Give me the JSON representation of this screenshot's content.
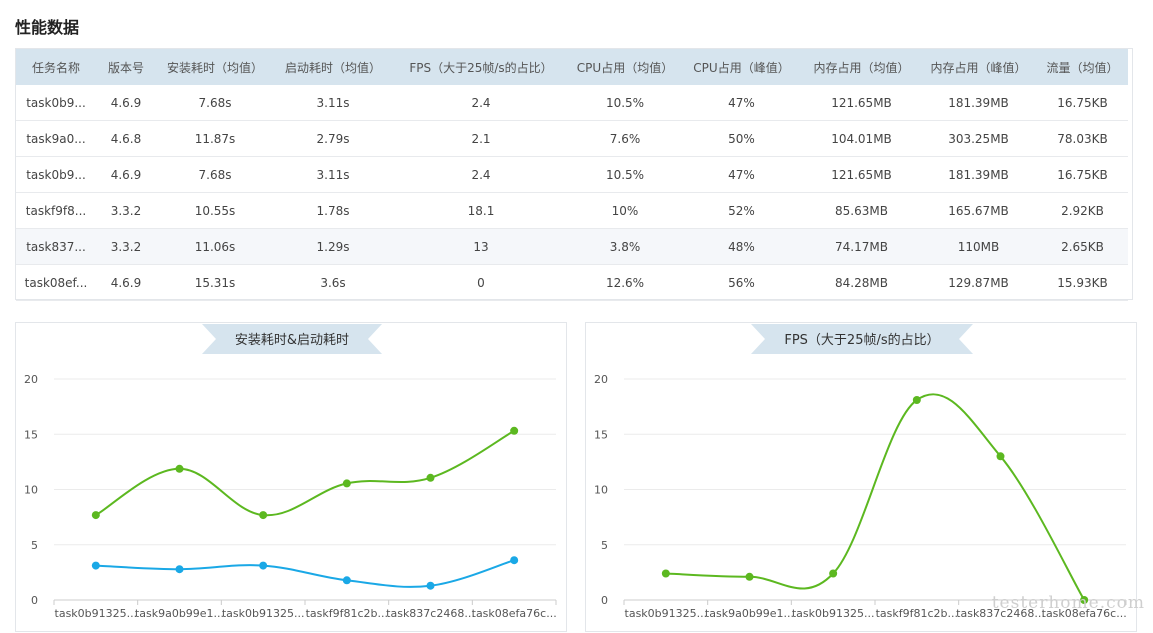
{
  "page": {
    "title": "性能数据"
  },
  "table": {
    "columns": [
      "任务名称",
      "版本号",
      "安装耗时（均值）",
      "启动耗时（均值）",
      "FPS（大于25帧/s的占比）",
      "CPU占用（均值）",
      "CPU占用（峰值）",
      "内存占用（均值）",
      "内存占用（峰值）",
      "流量（均值）"
    ],
    "rows": [
      [
        "task0b9...",
        "4.6.9",
        "7.68s",
        "3.11s",
        "2.4",
        "10.5%",
        "47%",
        "121.65MB",
        "181.39MB",
        "16.75KB"
      ],
      [
        "task9a0...",
        "4.6.8",
        "11.87s",
        "2.79s",
        "2.1",
        "7.6%",
        "50%",
        "104.01MB",
        "303.25MB",
        "78.03KB"
      ],
      [
        "task0b9...",
        "4.6.9",
        "7.68s",
        "3.11s",
        "2.4",
        "10.5%",
        "47%",
        "121.65MB",
        "181.39MB",
        "16.75KB"
      ],
      [
        "taskf9f8...",
        "3.3.2",
        "10.55s",
        "1.78s",
        "18.1",
        "10%",
        "52%",
        "85.63MB",
        "165.67MB",
        "2.92KB"
      ],
      [
        "task837...",
        "3.3.2",
        "11.06s",
        "1.29s",
        "13",
        "3.8%",
        "48%",
        "74.17MB",
        "110MB",
        "2.65KB"
      ],
      [
        "task08ef...",
        "4.6.9",
        "15.31s",
        "3.6s",
        "0",
        "12.6%",
        "56%",
        "84.28MB",
        "129.87MB",
        "15.93KB"
      ]
    ],
    "highlighted_row": 4
  },
  "chart_data": [
    {
      "type": "line",
      "title": "安装耗时&启动耗时",
      "categories": [
        "task0b91325...",
        "task9a0b99e1...",
        "task0b91325...",
        "taskf9f81c2b...",
        "task837c2468...",
        "task08efa76c..."
      ],
      "series": [
        {
          "values": [
            7.68,
            11.87,
            7.68,
            10.55,
            11.06,
            15.31
          ],
          "color": "#5cb820"
        },
        {
          "values": [
            3.11,
            2.79,
            3.11,
            1.78,
            1.29,
            3.6
          ],
          "color": "#1aa8e6"
        }
      ],
      "yticks": [
        "0",
        "5",
        "10",
        "15",
        "20"
      ],
      "ylim": [
        0,
        20
      ],
      "grid": true
    },
    {
      "type": "line",
      "title": "FPS（大于25帧/s的占比）",
      "categories": [
        "task0b91325...",
        "task9a0b99e1...",
        "task0b91325...",
        "taskf9f81c2b...",
        "task837c2468...",
        "task08efa76c..."
      ],
      "series": [
        {
          "values": [
            2.4,
            2.1,
            2.4,
            18.1,
            13,
            0
          ],
          "color": "#5cb820"
        }
      ],
      "yticks": [
        "0",
        "5",
        "10",
        "15",
        "20"
      ],
      "ylim": [
        0,
        20
      ],
      "grid": true
    }
  ],
  "watermark": {
    "text": "testerhome.com"
  }
}
